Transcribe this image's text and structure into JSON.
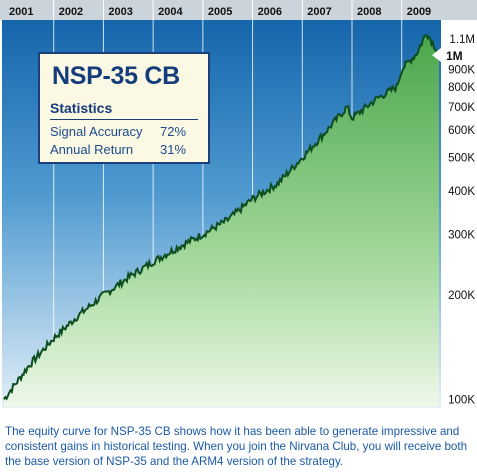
{
  "chart_data": {
    "type": "area",
    "years": [
      "2001",
      "2002",
      "2003",
      "2004",
      "2005",
      "2006",
      "2007",
      "2008",
      "2009"
    ],
    "y_ticks": [
      "1.1M",
      "900K",
      "800K",
      "700K",
      "600K",
      "500K",
      "400K",
      "300K",
      "200K",
      "100K"
    ],
    "y_scale": "log",
    "ylim": [
      95000,
      1250000
    ],
    "current_value_label": "1M",
    "x": [
      2001.0,
      2001.5,
      2002.0,
      2002.5,
      2003.0,
      2003.5,
      2004.0,
      2004.5,
      2005.0,
      2005.5,
      2006.0,
      2006.5,
      2007.0,
      2007.5,
      2007.9,
      2008.0,
      2008.5,
      2008.9,
      2009.0,
      2009.3,
      2009.5,
      2009.75
    ],
    "values": [
      100000,
      125000,
      150000,
      175000,
      200000,
      225000,
      250000,
      275000,
      300000,
      330000,
      380000,
      420000,
      500000,
      600000,
      700000,
      650000,
      740000,
      800000,
      900000,
      1000000,
      1150000,
      1000000
    ],
    "legend": "none",
    "grid": true
  },
  "stats": {
    "title": "NSP-35 CB",
    "heading": "Statistics",
    "rows": [
      {
        "label": "Signal Accuracy",
        "value": "72%"
      },
      {
        "label": "Annual Return",
        "value": "31%"
      }
    ]
  },
  "caption": "The equity curve for NSP-35 CB shows how it has been able to generate impressive and consistent gains in historical testing. When you join the Nirvana Club, you will receive both the base version of NSP-35 and the ARM4 version of the strategy.",
  "colors": {
    "year_band": "#cbd4da",
    "plot_bg": "#1a6fb3",
    "line": "#0e4d1f",
    "area_top": "#5fb960",
    "area_bottom": "#e9f6e4",
    "text_blue": "#1b5aa8"
  }
}
